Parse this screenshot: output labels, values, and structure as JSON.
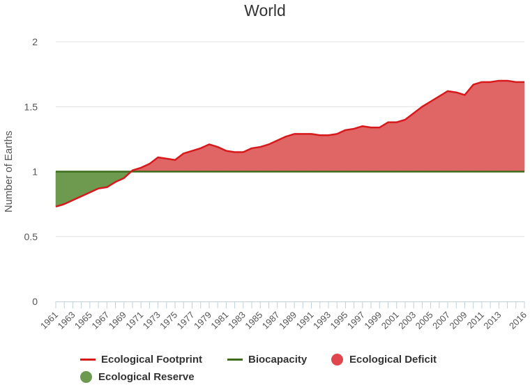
{
  "chart_data": {
    "type": "area",
    "title": "World",
    "xlabel": "",
    "ylabel": "Number of Earths",
    "ylim": [
      0,
      2
    ],
    "yticks": [
      "0",
      "0.5",
      "1",
      "1.5",
      "2"
    ],
    "grid": true,
    "legend_position": "bottom",
    "colors": {
      "footprint": "#d7191c",
      "biocapacity": "#3d6b1c",
      "deficit": "#e06666",
      "reserve": "#6e9a50"
    },
    "x": [
      1961,
      1962,
      1963,
      1964,
      1965,
      1966,
      1967,
      1968,
      1969,
      1970,
      1971,
      1972,
      1973,
      1974,
      1975,
      1976,
      1977,
      1978,
      1979,
      1980,
      1981,
      1982,
      1983,
      1984,
      1985,
      1986,
      1987,
      1988,
      1989,
      1990,
      1991,
      1992,
      1993,
      1994,
      1995,
      1996,
      1997,
      1998,
      1999,
      2000,
      2001,
      2002,
      2003,
      2004,
      2005,
      2006,
      2007,
      2008,
      2009,
      2010,
      2011,
      2012,
      2013,
      2014,
      2015,
      2016
    ],
    "x_tick_labels": [
      "1961",
      "1963",
      "1965",
      "1967",
      "1969",
      "1971",
      "1973",
      "1975",
      "1977",
      "1979",
      "1981",
      "1983",
      "1985",
      "1987",
      "1989",
      "1991",
      "1993",
      "1995",
      "1997",
      "1999",
      "2001",
      "2003",
      "2005",
      "2007",
      "2009",
      "2011",
      "2013",
      "2016"
    ],
    "series": [
      {
        "name": "Ecological Footprint",
        "values": [
          0.73,
          0.75,
          0.78,
          0.81,
          0.84,
          0.87,
          0.88,
          0.92,
          0.95,
          1.01,
          1.03,
          1.06,
          1.11,
          1.1,
          1.09,
          1.14,
          1.16,
          1.18,
          1.21,
          1.19,
          1.16,
          1.15,
          1.15,
          1.18,
          1.19,
          1.21,
          1.24,
          1.27,
          1.29,
          1.29,
          1.29,
          1.28,
          1.28,
          1.29,
          1.32,
          1.33,
          1.35,
          1.34,
          1.34,
          1.38,
          1.38,
          1.4,
          1.45,
          1.5,
          1.54,
          1.58,
          1.62,
          1.61,
          1.59,
          1.67,
          1.69,
          1.69,
          1.7,
          1.7,
          1.69,
          1.69
        ]
      },
      {
        "name": "Biocapacity",
        "values": [
          1,
          1,
          1,
          1,
          1,
          1,
          1,
          1,
          1,
          1,
          1,
          1,
          1,
          1,
          1,
          1,
          1,
          1,
          1,
          1,
          1,
          1,
          1,
          1,
          1,
          1,
          1,
          1,
          1,
          1,
          1,
          1,
          1,
          1,
          1,
          1,
          1,
          1,
          1,
          1,
          1,
          1,
          1,
          1,
          1,
          1,
          1,
          1,
          1,
          1,
          1,
          1,
          1,
          1,
          1,
          1
        ]
      }
    ],
    "legend": [
      "Ecological Footprint",
      "Biocapacity",
      "Ecological Deficit",
      "Ecological Reserve"
    ]
  }
}
